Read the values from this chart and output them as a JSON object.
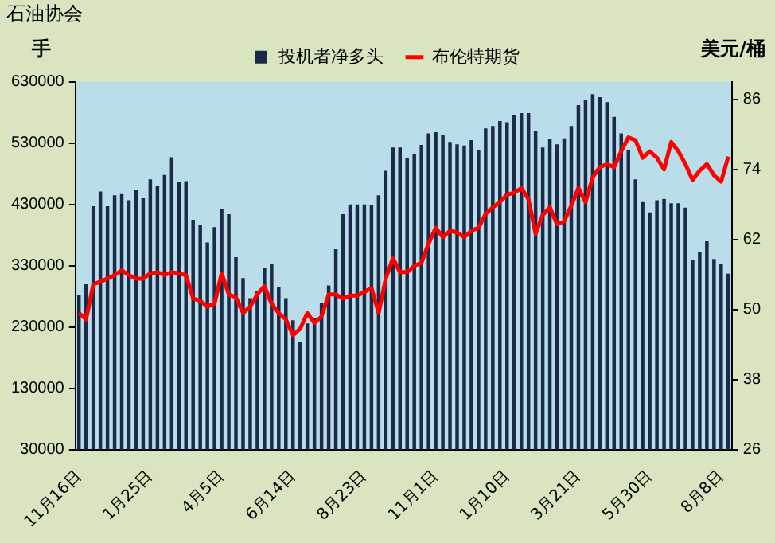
{
  "chart_data": {
    "type": "bar",
    "title": "石油协会",
    "ylabel": "手",
    "y2label": "美元/桶",
    "categories": [
      "11月16日",
      null,
      null,
      null,
      null,
      null,
      null,
      null,
      null,
      null,
      "1月25日",
      null,
      null,
      null,
      null,
      null,
      null,
      null,
      null,
      null,
      "4月5日",
      null,
      null,
      null,
      null,
      null,
      null,
      null,
      null,
      null,
      "6月14日",
      null,
      null,
      null,
      null,
      null,
      null,
      null,
      null,
      null,
      "8月23日",
      null,
      null,
      null,
      null,
      null,
      null,
      null,
      null,
      null,
      "11月1日",
      null,
      null,
      null,
      null,
      null,
      null,
      null,
      null,
      null,
      "1月10日",
      null,
      null,
      null,
      null,
      null,
      null,
      null,
      null,
      null,
      "3月21日",
      null,
      null,
      null,
      null,
      null,
      null,
      null,
      null,
      null,
      "5月30日",
      null,
      null,
      null,
      null,
      null,
      null,
      null,
      null,
      null,
      "8月8日",
      null
    ],
    "series": [
      {
        "name": "投机者净多头",
        "color": "#1a2a48",
        "values": [
          282000,
          300000,
          427000,
          451000,
          427000,
          445000,
          447000,
          437000,
          453000,
          440000,
          471000,
          460000,
          478000,
          507000,
          466000,
          468000,
          405000,
          396000,
          368000,
          393000,
          422000,
          414000,
          344000,
          310000,
          277000,
          288000,
          326000,
          333000,
          296000,
          277000,
          241000,
          205000,
          236000,
          244000,
          270000,
          298000,
          357000,
          414000,
          430000,
          430000,
          430000,
          429000,
          445000,
          485000,
          523000,
          523000,
          506000,
          512000,
          527000,
          546000,
          548000,
          544000,
          532000,
          528000,
          526000,
          535000,
          519000,
          554000,
          558000,
          566000,
          564000,
          576000,
          579000,
          579000,
          550000,
          523000,
          537000,
          528000,
          538000,
          558000,
          592000,
          600000,
          610000,
          605000,
          597000,
          573000,
          546000,
          518000,
          471000,
          434000,
          417000,
          437000,
          439000,
          432000,
          432000,
          425000,
          339000,
          353000,
          370000,
          341000,
          333000,
          317000
        ]
      },
      {
        "name": "布伦特期货",
        "type": "line",
        "axis": "y2",
        "color": "#ff0000",
        "values": [
          49.4,
          48.3,
          54.3,
          54.8,
          55.3,
          55.9,
          56.7,
          55.9,
          55.3,
          55.3,
          56.2,
          56.4,
          55.9,
          56.4,
          56.2,
          55.9,
          51.9,
          51.5,
          50.5,
          51,
          56.2,
          52.6,
          52.1,
          49.4,
          50.5,
          52.6,
          54,
          51,
          49.4,
          48.3,
          45.6,
          46.7,
          49.4,
          47.7,
          48.8,
          52.6,
          52.6,
          51.9,
          52.4,
          52.4,
          53,
          53.7,
          49.4,
          55.3,
          58.8,
          56.4,
          56.4,
          57.5,
          58,
          61.3,
          64,
          62.4,
          63.5,
          63.2,
          62.4,
          63.5,
          64,
          66.4,
          67.5,
          68.4,
          69.7,
          70,
          70.8,
          68.9,
          63,
          66.2,
          67.5,
          64.6,
          65.1,
          67.8,
          70.8,
          68.4,
          72.7,
          74.4,
          74.9,
          74.4,
          77.1,
          79.5,
          79,
          76,
          77.1,
          76,
          74,
          78.7,
          77.1,
          74.9,
          72.2,
          73.8,
          74.9,
          73,
          71.9,
          76.2
        ]
      }
    ],
    "ylim": [
      30000,
      630000
    ],
    "yticks": [
      30000,
      130000,
      230000,
      330000,
      430000,
      530000,
      630000
    ],
    "y2lim": [
      26,
      89
    ],
    "y2ticks": [
      26,
      38,
      50,
      62,
      74,
      86
    ],
    "legend": "top",
    "marker": "none",
    "line_style": "solid"
  }
}
